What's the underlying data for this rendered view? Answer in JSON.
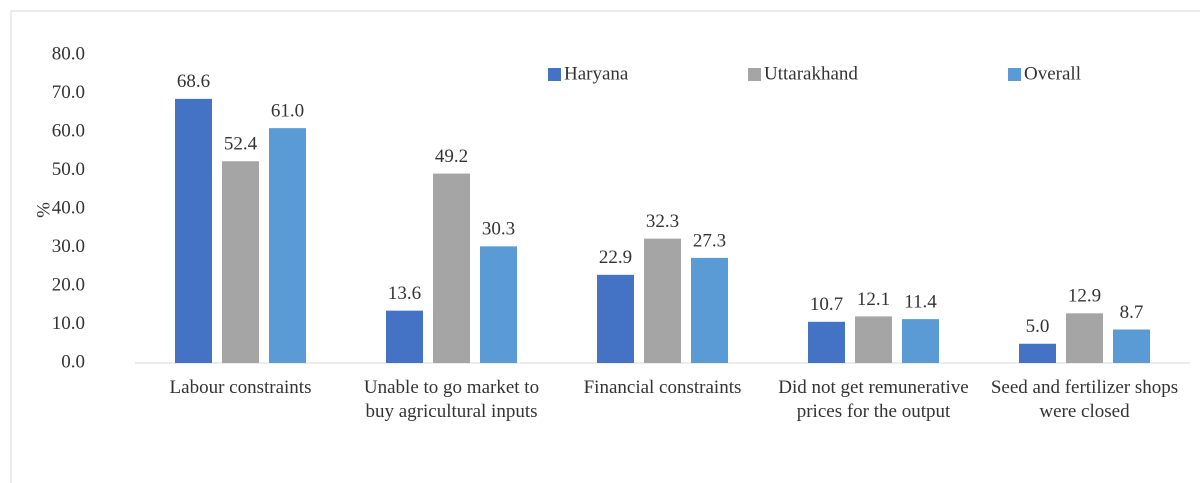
{
  "chart_data": {
    "type": "bar",
    "y_label": "%",
    "categories": [
      "Labour constraints",
      "Unable to go market to buy agricultural inputs",
      "Financial constraints",
      "Did not get remunerative prices for the output",
      "Seed and fertilizer shops were closed"
    ],
    "series": [
      {
        "name": "Haryana",
        "color": "#4472c4",
        "values": [
          68.6,
          13.6,
          22.9,
          10.7,
          5.0
        ],
        "value_labels": [
          "68.6",
          "13.6",
          "22.9",
          "10.7",
          "5.0"
        ]
      },
      {
        "name": "Uttarakhand",
        "color": "#a5a5a5",
        "values": [
          52.4,
          49.2,
          32.3,
          12.1,
          12.9
        ],
        "value_labels": [
          "52.4",
          "49.2",
          "32.3",
          "12.1",
          "12.9"
        ]
      },
      {
        "name": "Overall",
        "color": "#5b9bd5",
        "values": [
          61.0,
          30.3,
          27.3,
          11.4,
          8.7
        ],
        "value_labels": [
          "61.0",
          "30.3",
          "27.3",
          "11.4",
          "8.7"
        ]
      }
    ],
    "ylim": [
      0,
      80
    ],
    "yticks": [
      {
        "value": 0,
        "label": "0.0"
      },
      {
        "value": 10,
        "label": "10.0"
      },
      {
        "value": 20,
        "label": "20.0"
      },
      {
        "value": 30,
        "label": "30.0"
      },
      {
        "value": 40,
        "label": "40.0"
      },
      {
        "value": 50,
        "label": "50.0"
      },
      {
        "value": 60,
        "label": "60.0"
      },
      {
        "value": 70,
        "label": "70.0"
      },
      {
        "value": 80,
        "label": "80.0"
      }
    ],
    "legend": "top-right"
  }
}
